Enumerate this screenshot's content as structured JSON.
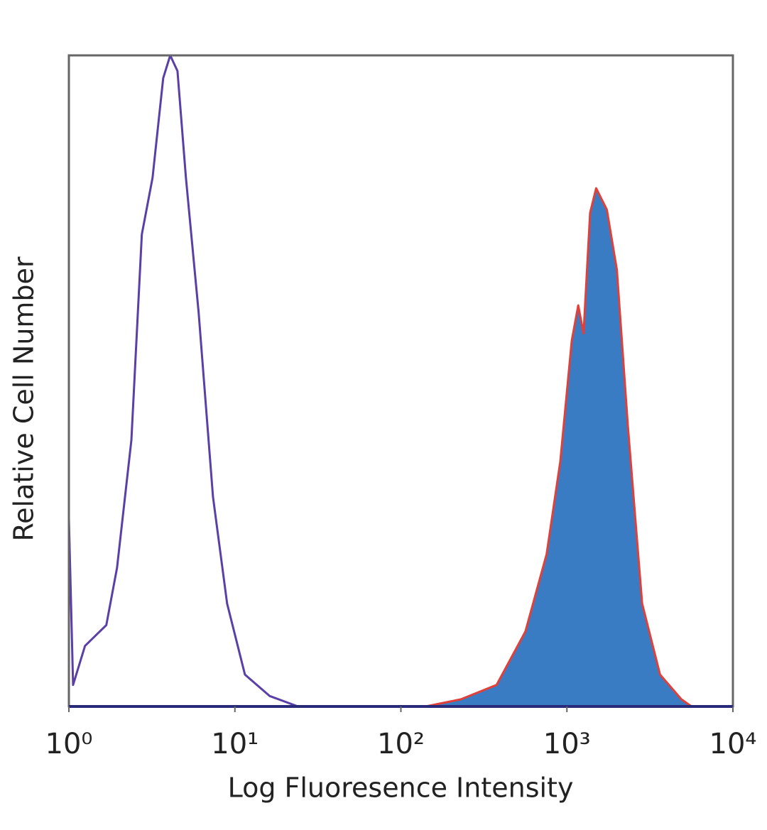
{
  "chart_data": {
    "type": "line",
    "xscale": "log",
    "xlabel": "Log Fluoresence Intensity",
    "ylabel": "Relative Cell Number",
    "xlim": [
      1,
      10000
    ],
    "ylim": [
      0,
      100
    ],
    "xticks": [
      {
        "value": 1,
        "label": "10⁰"
      },
      {
        "value": 10,
        "label": "10¹"
      },
      {
        "value": 100,
        "label": "10²"
      },
      {
        "value": 1000,
        "label": "10³"
      },
      {
        "value": 10000,
        "label": "10⁴"
      }
    ],
    "series": [
      {
        "color": "#5a3fa6",
        "fill": null,
        "x": [
          1,
          1.06,
          1.25,
          1.68,
          1.95,
          2.38,
          2.75,
          3.19,
          3.7,
          4.08,
          4.51,
          5.07,
          6.05,
          7.38,
          8.98,
          11.5,
          16.2,
          24,
          10000
        ],
        "values": [
          28.9,
          3.3,
          9.3,
          12.5,
          21.3,
          40.9,
          72.5,
          81.2,
          96.5,
          100,
          97.6,
          81.2,
          60.5,
          32.2,
          15.8,
          4.9,
          1.6,
          0,
          0
        ]
      },
      {
        "color": "#e0403a",
        "fill": "#3a7cc3",
        "x": [
          1,
          141,
          230,
          377,
          562,
          755,
          912,
          1070,
          1170,
          1260,
          1380,
          1500,
          1740,
          2000,
          2330,
          2840,
          3640,
          4890,
          5630,
          10000
        ],
        "values": [
          0,
          0,
          1.1,
          3.3,
          11.5,
          23.4,
          37.6,
          56.2,
          61.6,
          57.3,
          75.8,
          79.6,
          76.3,
          67.1,
          43.1,
          15.8,
          4.9,
          1.1,
          0,
          0
        ]
      }
    ]
  }
}
